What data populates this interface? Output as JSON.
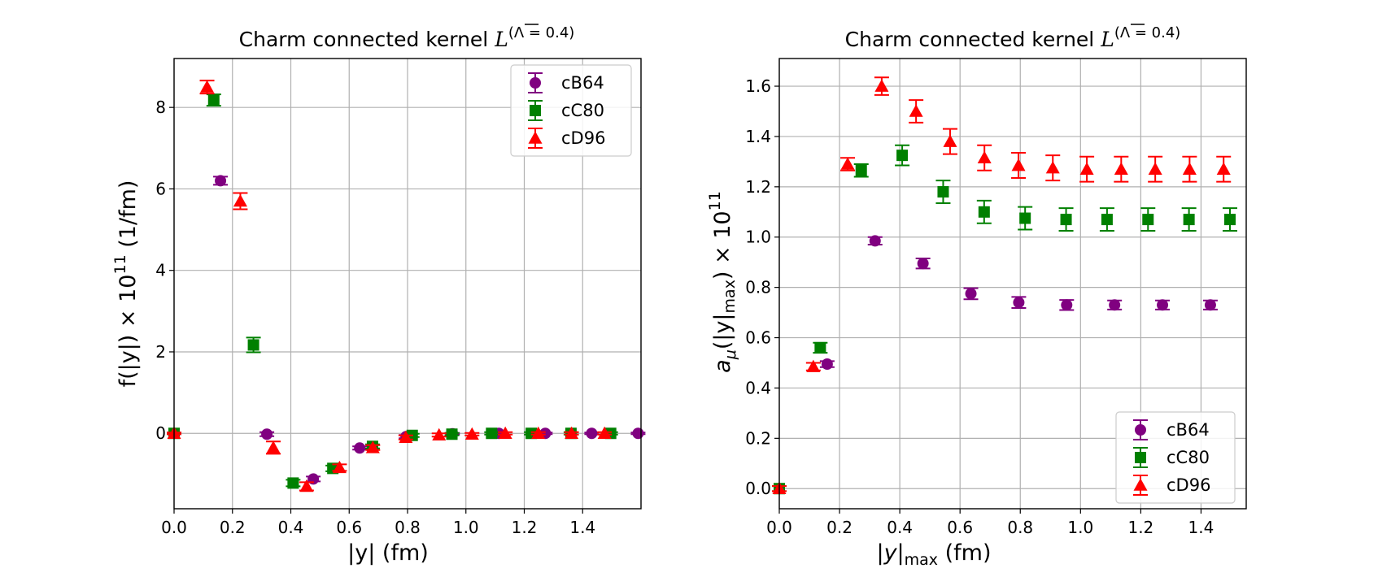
{
  "chart_data": [
    {
      "type": "scatter",
      "title": "Charm connected kernel",
      "title_symbol": "L",
      "title_superscript": "(Λ = 0.4)",
      "xlabel": "|y| (fm)",
      "ylabel": "f(|y|) × 10",
      "ylabel_exponent": "11",
      "ylabel_suffix": " (1/fm)",
      "xlim": [
        0.0,
        1.6
      ],
      "ylim": [
        -1.85,
        9.2
      ],
      "xticks": [
        0.0,
        0.2,
        0.4,
        0.6,
        0.8,
        1.0,
        1.2,
        1.4
      ],
      "xtick_labels": [
        "0.0",
        "0.2",
        "0.4",
        "0.6",
        "0.8",
        "1.0",
        "1.2",
        "1.4"
      ],
      "yticks": [
        0,
        2,
        4,
        6,
        8
      ],
      "ytick_labels": [
        "0",
        "2",
        "4",
        "6",
        "8"
      ],
      "grid": true,
      "legend_position": "top-right",
      "series": [
        {
          "name": "cB64",
          "color": "#800080",
          "marker": "circle",
          "x": [
            0.0,
            0.159,
            0.318,
            0.477,
            0.636,
            0.795,
            0.954,
            1.113,
            1.272,
            1.431,
            1.59
          ],
          "y": [
            0.0,
            6.2,
            -0.02,
            -1.12,
            -0.36,
            -0.08,
            -0.01,
            0.0,
            0.0,
            0.0,
            0.0
          ],
          "err": [
            0.02,
            0.1,
            0.05,
            0.06,
            0.04,
            0.04,
            0.02,
            0.02,
            0.02,
            0.02,
            0.02
          ]
        },
        {
          "name": "cC80",
          "color": "#008000",
          "marker": "square",
          "x": [
            0.0,
            0.136,
            0.272,
            0.408,
            0.544,
            0.68,
            0.816,
            0.952,
            1.088,
            1.224,
            1.36,
            1.496
          ],
          "y": [
            0.0,
            8.18,
            2.17,
            -1.22,
            -0.86,
            -0.32,
            -0.05,
            -0.02,
            0.0,
            0.0,
            0.0,
            0.0
          ],
          "err": [
            0.02,
            0.14,
            0.18,
            0.08,
            0.07,
            0.05,
            0.04,
            0.03,
            0.03,
            0.03,
            0.03,
            0.03
          ]
        },
        {
          "name": "cD96",
          "color": "#ff0000",
          "marker": "triangle",
          "x": [
            0.0,
            0.113,
            0.227,
            0.34,
            0.454,
            0.567,
            0.681,
            0.794,
            0.908,
            1.021,
            1.135,
            1.248,
            1.362,
            1.475
          ],
          "y": [
            0.0,
            8.5,
            5.7,
            -0.35,
            -1.3,
            -0.84,
            -0.35,
            -0.1,
            -0.04,
            -0.02,
            0.0,
            0.0,
            0.0,
            0.0
          ],
          "err": [
            0.02,
            0.16,
            0.2,
            0.15,
            0.1,
            0.08,
            0.06,
            0.05,
            0.04,
            0.03,
            0.03,
            0.03,
            0.03,
            0.03
          ]
        }
      ]
    },
    {
      "type": "scatter",
      "title": "Charm connected kernel",
      "title_symbol": "L",
      "title_superscript": "(Λ = 0.4)",
      "xlabel": "|y|",
      "xlabel_subscript": "max",
      "xlabel_suffix": " (fm)",
      "ylabel": "a",
      "ylabel_mu": "μ",
      "ylabel_mid": "(|y|",
      "ylabel_sub2": "max",
      "ylabel_end": ") × 10",
      "ylabel_exponent": "11",
      "xlim": [
        0.0,
        1.55
      ],
      "ylim": [
        -0.08,
        1.71
      ],
      "xticks": [
        0.0,
        0.2,
        0.4,
        0.6,
        0.8,
        1.0,
        1.2,
        1.4
      ],
      "xtick_labels": [
        "0.0",
        "0.2",
        "0.4",
        "0.6",
        "0.8",
        "1.0",
        "1.2",
        "1.4"
      ],
      "yticks": [
        0.0,
        0.2,
        0.4,
        0.6,
        0.8,
        1.0,
        1.2,
        1.4,
        1.6
      ],
      "ytick_labels": [
        "0.0",
        "0.2",
        "0.4",
        "0.6",
        "0.8",
        "1.0",
        "1.2",
        "1.4",
        "1.6"
      ],
      "grid": true,
      "legend_position": "bottom-right",
      "series": [
        {
          "name": "cB64",
          "color": "#800080",
          "marker": "circle",
          "x": [
            0.159,
            0.318,
            0.477,
            0.636,
            0.795,
            0.954,
            1.113,
            1.272,
            1.431
          ],
          "y": [
            0.495,
            0.985,
            0.895,
            0.775,
            0.74,
            0.73,
            0.73,
            0.73,
            0.73
          ],
          "err": [
            0.012,
            0.015,
            0.02,
            0.022,
            0.022,
            0.02,
            0.018,
            0.018,
            0.018
          ]
        },
        {
          "name": "cC80",
          "color": "#008000",
          "marker": "square",
          "x": [
            0.0,
            0.136,
            0.272,
            0.408,
            0.544,
            0.68,
            0.816,
            0.952,
            1.088,
            1.224,
            1.36,
            1.496
          ],
          "y": [
            0.0,
            0.56,
            1.265,
            1.325,
            1.18,
            1.1,
            1.075,
            1.07,
            1.07,
            1.07,
            1.07,
            1.07
          ],
          "err": [
            0.01,
            0.02,
            0.025,
            0.04,
            0.045,
            0.045,
            0.045,
            0.045,
            0.045,
            0.045,
            0.045,
            0.045
          ]
        },
        {
          "name": "cD96",
          "color": "#ff0000",
          "marker": "triangle",
          "x": [
            0.0,
            0.113,
            0.227,
            0.34,
            0.454,
            0.567,
            0.681,
            0.794,
            0.908,
            1.021,
            1.135,
            1.248,
            1.362,
            1.475
          ],
          "y": [
            0.0,
            0.485,
            1.29,
            1.6,
            1.5,
            1.38,
            1.315,
            1.285,
            1.275,
            1.27,
            1.27,
            1.27,
            1.27,
            1.27
          ],
          "err": [
            0.01,
            0.015,
            0.025,
            0.035,
            0.045,
            0.05,
            0.05,
            0.05,
            0.05,
            0.05,
            0.05,
            0.05,
            0.05,
            0.05
          ]
        }
      ]
    }
  ]
}
